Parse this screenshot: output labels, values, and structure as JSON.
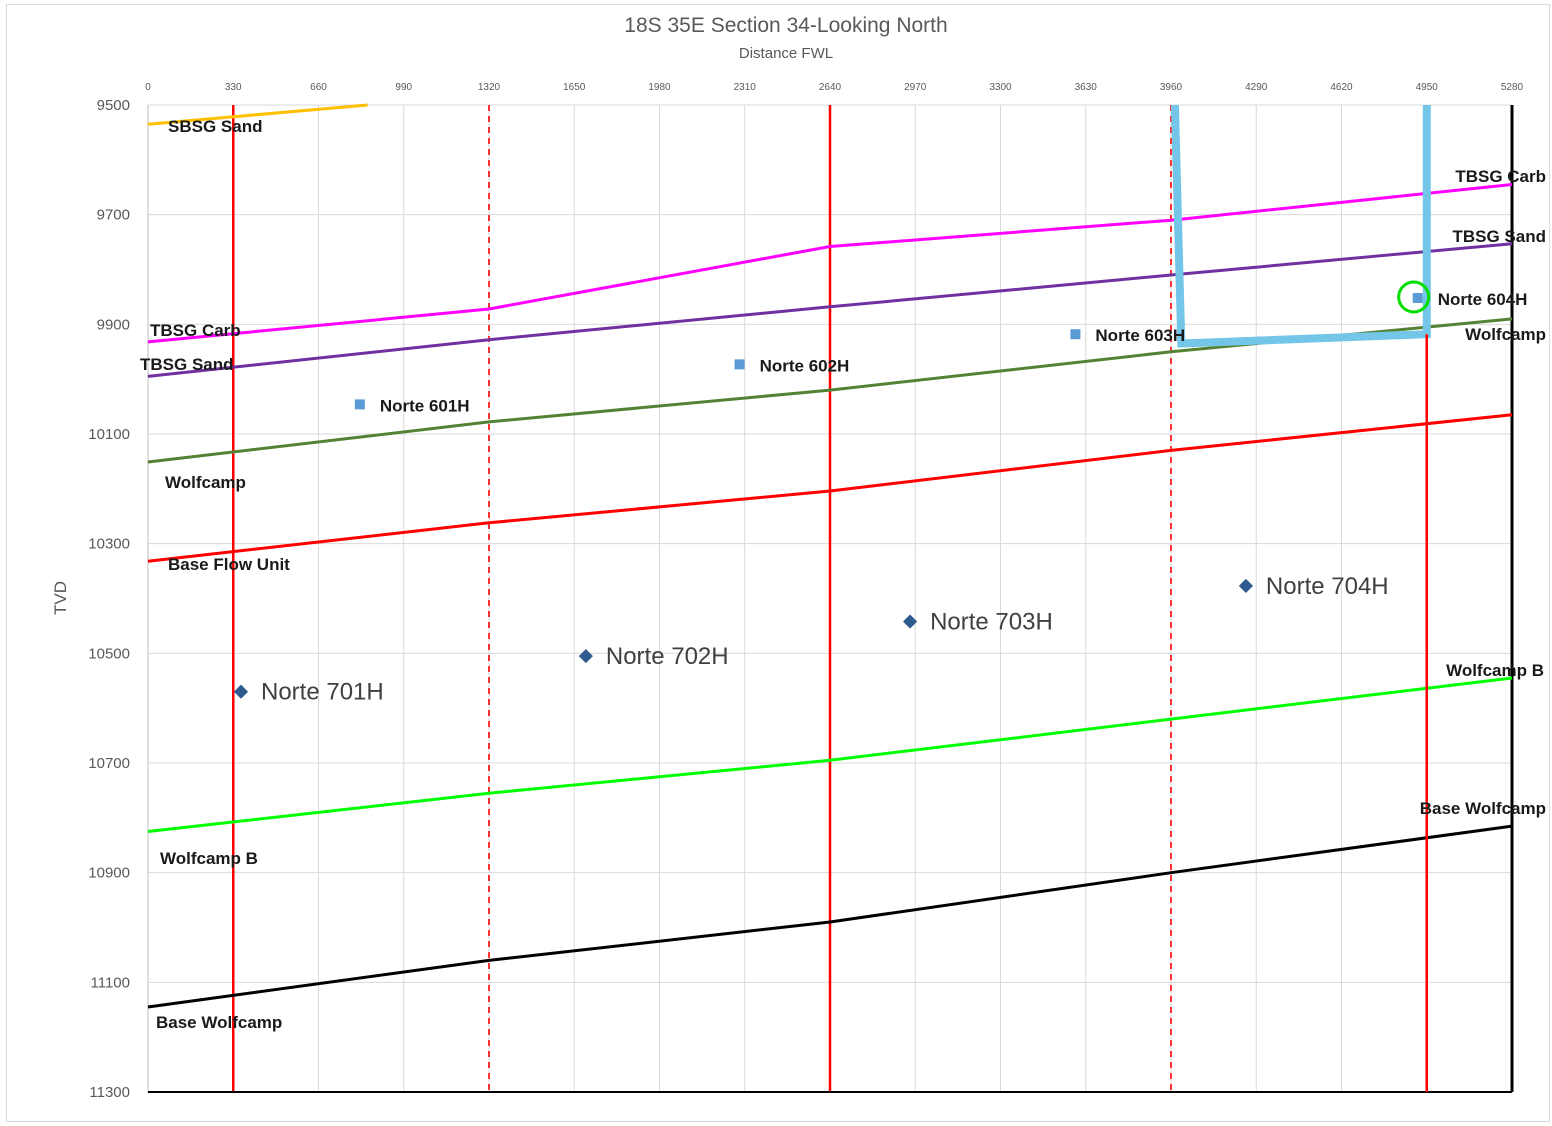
{
  "chart_data": {
    "type": "scatter",
    "title": "18S 35E Section 34-Looking North",
    "xlabel": "Distance FWL",
    "ylabel": "TVD",
    "xlim": [
      0,
      5280
    ],
    "ylim": [
      9500,
      11300
    ],
    "y_inverted": true,
    "x_ticks": [
      0,
      330,
      660,
      990,
      1320,
      1650,
      1980,
      2310,
      2640,
      2970,
      3300,
      3630,
      3960,
      4290,
      4620,
      4950,
      5280
    ],
    "y_ticks": [
      9500,
      9700,
      9900,
      10100,
      10300,
      10500,
      10700,
      10900,
      11100,
      11300
    ],
    "grid": true,
    "colors": {
      "sbsg_sand": "#ffc000",
      "tbsg_carb": "#ff00ff",
      "tbsg_sand": "#7030a0",
      "wolfcamp": "#548235",
      "base_flow_unit": "#ff0000",
      "wolfcamp_b": "#00ff00",
      "base_wolfcamp": "#000000",
      "section_line": "#ff0000",
      "well_square": "#5b9bd5",
      "well_diamond": "#2e5a8e",
      "wellbore": "#73c6e8",
      "highlight_circle": "#00dd00"
    },
    "vertical_lines": [
      {
        "x": 330,
        "style": "solid"
      },
      {
        "x": 1320,
        "style": "dashed"
      },
      {
        "x": 2640,
        "style": "solid"
      },
      {
        "x": 3960,
        "style": "dashed"
      },
      {
        "x": 4950,
        "style": "solid"
      },
      {
        "x": 5280,
        "style": "axis"
      }
    ],
    "formations": [
      {
        "key": "sbsg_sand",
        "x": [
          0,
          850
        ],
        "y": [
          9535,
          9500
        ],
        "labels": [
          {
            "text": "SBSG Sand",
            "side": "left"
          }
        ]
      },
      {
        "key": "tbsg_carb",
        "x": [
          0,
          1320,
          2640,
          3960,
          5280
        ],
        "y": [
          9932,
          9872,
          9758,
          9710,
          9645
        ],
        "labels": [
          {
            "text": "TBSG Carb",
            "side": "left"
          },
          {
            "text": "TBSG Carb",
            "side": "right"
          }
        ]
      },
      {
        "key": "tbsg_sand",
        "x": [
          0,
          1320,
          2640,
          3960,
          5280
        ],
        "y": [
          9995,
          9928,
          9868,
          9810,
          9753
        ],
        "labels": [
          {
            "text": "TBSG Sand",
            "side": "left"
          },
          {
            "text": "TBSG Sand",
            "side": "right"
          }
        ]
      },
      {
        "key": "wolfcamp",
        "x": [
          0,
          1320,
          2640,
          3960,
          5280
        ],
        "y": [
          10151,
          10078,
          10020,
          9950,
          9890
        ],
        "labels": [
          {
            "text": "Wolfcamp",
            "side": "left"
          },
          {
            "text": "Wolfcamp",
            "side": "right"
          }
        ]
      },
      {
        "key": "base_flow_unit",
        "x": [
          0,
          1320,
          2640,
          3960,
          5280
        ],
        "y": [
          10332,
          10262,
          10204,
          10130,
          10065
        ],
        "labels": [
          {
            "text": "Base Flow Unit",
            "side": "left"
          }
        ]
      },
      {
        "key": "wolfcamp_b",
        "x": [
          0,
          1320,
          2640,
          3960,
          5280
        ],
        "y": [
          10825,
          10755,
          10695,
          10620,
          10545
        ],
        "labels": [
          {
            "text": "Wolfcamp B",
            "side": "left"
          },
          {
            "text": "Wolfcamp B",
            "side": "right"
          }
        ]
      },
      {
        "key": "base_wolfcamp",
        "x": [
          0,
          1320,
          2640,
          3960,
          5280
        ],
        "y": [
          11145,
          11060,
          10990,
          10900,
          10815
        ],
        "labels": [
          {
            "text": "Base Wolfcamp",
            "side": "left"
          },
          {
            "text": "Base Wolfcamp",
            "side": "right"
          }
        ]
      }
    ],
    "wells": [
      {
        "name": "Norte 601H",
        "x": 820,
        "y": 10046,
        "marker": "square"
      },
      {
        "name": "Norte 602H",
        "x": 2290,
        "y": 9973,
        "marker": "square"
      },
      {
        "name": "Norte 603H",
        "x": 3590,
        "y": 9918,
        "marker": "square"
      },
      {
        "name": "Norte 604H",
        "x": 4915,
        "y": 9852,
        "marker": "square"
      },
      {
        "name": "Norte 701H",
        "x": 360,
        "y": 10570,
        "marker": "diamond"
      },
      {
        "name": "Norte 702H",
        "x": 1695,
        "y": 10505,
        "marker": "diamond"
      },
      {
        "name": "Norte 703H",
        "x": 2950,
        "y": 10442,
        "marker": "diamond"
      },
      {
        "name": "Norte 704H",
        "x": 4250,
        "y": 10377,
        "marker": "diamond"
      }
    ],
    "wellbore_path": {
      "x": [
        3975,
        4000,
        4950,
        4950
      ],
      "y": [
        9500,
        9935,
        9918,
        9500
      ]
    },
    "highlight": {
      "well": "Norte 604H",
      "shape": "circle"
    }
  }
}
